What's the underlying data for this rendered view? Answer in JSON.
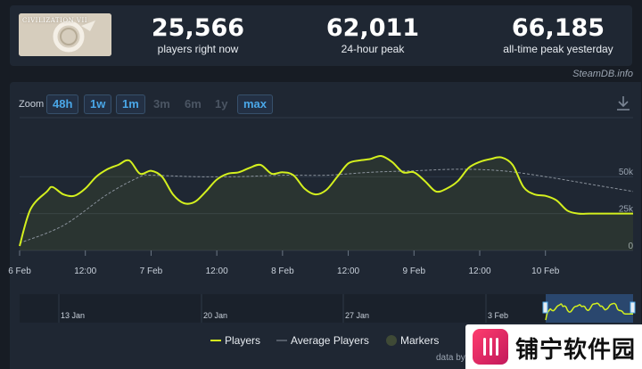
{
  "game": {
    "thumb_title": "CIVILIZATION VII"
  },
  "stats": [
    {
      "value": "25,566",
      "label": "players right now"
    },
    {
      "value": "62,011",
      "label": "24-hour peak"
    },
    {
      "value": "66,185",
      "label": "all-time peak yesterday"
    }
  ],
  "credit_top": "SteamDB.info",
  "zoom": {
    "label": "Zoom",
    "options": [
      {
        "label": "48h",
        "active": true
      },
      {
        "label": "1w",
        "active": true
      },
      {
        "label": "1m",
        "active": true
      },
      {
        "label": "3m",
        "active": false
      },
      {
        "label": "6m",
        "active": false
      },
      {
        "label": "1y",
        "active": false
      },
      {
        "label": "max",
        "active": true
      }
    ]
  },
  "colors": {
    "players": "#d4f01e",
    "average": "#8a929c",
    "markers": "#3f4a36",
    "grid": "#2f3947"
  },
  "chart_data": {
    "type": "line",
    "x_ticks": [
      "6 Feb",
      "12:00",
      "7 Feb",
      "12:00",
      "8 Feb",
      "12:00",
      "9 Feb",
      "12:00",
      "10 Feb"
    ],
    "y_ticks": [
      "0",
      "25k",
      "50k"
    ],
    "ylim": [
      0,
      90000
    ],
    "x_range_hours": [
      0,
      112
    ],
    "series": [
      {
        "name": "Players",
        "hours": [
          0,
          2,
          5,
          6,
          8,
          10,
          12,
          14,
          16,
          18,
          20,
          22,
          24,
          26,
          28,
          30,
          32,
          34,
          36,
          38,
          40,
          42,
          44,
          46,
          48,
          50,
          52,
          54,
          56,
          58,
          60,
          62,
          64,
          66,
          68,
          70,
          72,
          74,
          76,
          78,
          80,
          82,
          84,
          86,
          88,
          90,
          92,
          94,
          96,
          98,
          100,
          102,
          104,
          106,
          108,
          110,
          112
        ],
        "values": [
          3000,
          28000,
          40000,
          43000,
          38000,
          37000,
          42000,
          50000,
          55000,
          58000,
          61000,
          52000,
          54000,
          50000,
          38000,
          32000,
          33000,
          40000,
          48000,
          52000,
          53000,
          56000,
          58000,
          52000,
          53000,
          51000,
          42000,
          38000,
          41000,
          50000,
          59000,
          61000,
          62000,
          64000,
          60000,
          53000,
          53000,
          47000,
          40000,
          42000,
          47000,
          56000,
          60000,
          62000,
          63000,
          58000,
          43000,
          38000,
          37000,
          34000,
          27000,
          25000,
          25000,
          25000,
          25000,
          25000,
          25000
        ]
      },
      {
        "name": "Average Players",
        "hours": [
          0,
          8,
          16,
          22,
          24,
          32,
          40,
          48,
          56,
          64,
          72,
          80,
          88,
          96,
          104,
          112
        ],
        "values": [
          5000,
          17000,
          38000,
          50000,
          51000,
          50000,
          50000,
          51000,
          51000,
          53000,
          54000,
          55000,
          54000,
          50000,
          45000,
          40000
        ]
      }
    ],
    "navigator_ticks": [
      "13 Jan",
      "20 Jan",
      "27 Jan",
      "3 Feb"
    ]
  },
  "legend": [
    {
      "label": "Players"
    },
    {
      "label": "Average Players"
    },
    {
      "label": "Markers"
    }
  ],
  "credit_bottom": "data by",
  "watermark_text": "铺宁软件园"
}
